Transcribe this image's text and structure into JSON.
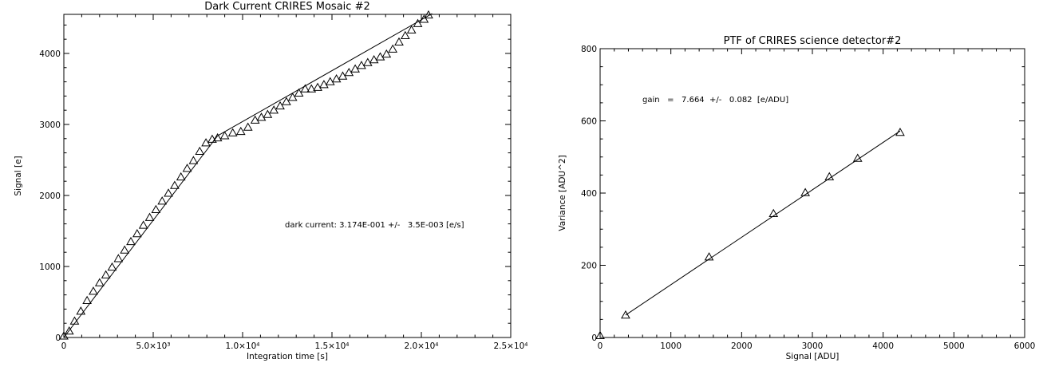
{
  "chart_data": [
    {
      "type": "scatter",
      "title": "Dark Current CRIRES Mosaic #2",
      "xlabel": "Integration time [s]",
      "ylabel": "Signal [e]",
      "xlim": [
        0,
        25000
      ],
      "ylim": [
        0,
        4550
      ],
      "xticks": [
        0,
        5000,
        10000,
        15000,
        20000,
        25000
      ],
      "xtick_labels": [
        "0",
        "5.0×10³",
        "1.0×10⁴",
        "1.5×10⁴",
        "2.0×10⁴",
        "2.5×10⁴"
      ],
      "yticks": [
        0,
        1000,
        2000,
        3000,
        4000
      ],
      "ytick_labels": [
        "0",
        "1000",
        "2000",
        "3000",
        "4000"
      ],
      "grid": false,
      "marker": "open triangle",
      "annotation": "dark current: 3.174E-001 +/-   3.5E-003 [e/s]",
      "x": [
        0,
        300,
        600,
        950,
        1300,
        1650,
        2000,
        2350,
        2700,
        3050,
        3400,
        3750,
        4100,
        4450,
        4800,
        5150,
        5500,
        5850,
        6200,
        6550,
        6900,
        7250,
        7600,
        7950,
        8300,
        8600,
        9000,
        9450,
        9900,
        10300,
        10700,
        11050,
        11400,
        11750,
        12100,
        12450,
        12800,
        13150,
        13500,
        13850,
        14200,
        14550,
        14900,
        15250,
        15600,
        15950,
        16300,
        16650,
        17000,
        17350,
        17700,
        18050,
        18400,
        18750,
        19100,
        19450,
        19800,
        20150,
        20400
      ],
      "y": [
        20,
        90,
        230,
        370,
        520,
        650,
        770,
        880,
        990,
        1110,
        1230,
        1350,
        1460,
        1580,
        1690,
        1800,
        1920,
        2030,
        2140,
        2260,
        2380,
        2490,
        2620,
        2740,
        2790,
        2810,
        2840,
        2880,
        2900,
        2960,
        3060,
        3100,
        3140,
        3200,
        3260,
        3320,
        3380,
        3440,
        3500,
        3500,
        3520,
        3560,
        3600,
        3640,
        3680,
        3730,
        3780,
        3830,
        3870,
        3910,
        3950,
        3990,
        4060,
        4160,
        4250,
        4330,
        4420,
        4480,
        4540
      ],
      "fit_lines": [
        {
          "x": [
            0,
            8600
          ],
          "y": [
            0,
            2840
          ]
        },
        {
          "x": [
            8600,
            20600
          ],
          "y": [
            2840,
            4560
          ]
        }
      ]
    },
    {
      "type": "scatter",
      "title": "PTF of CRIRES science detector#2",
      "xlabel": "Signal [ADU]",
      "ylabel": "Variance [ADU^2]",
      "xlim": [
        0,
        6000
      ],
      "ylim": [
        0,
        800
      ],
      "xticks": [
        0,
        1000,
        2000,
        3000,
        4000,
        5000,
        6000
      ],
      "xtick_labels": [
        "0",
        "1000",
        "2000",
        "3000",
        "4000",
        "5000",
        "6000"
      ],
      "yticks": [
        0,
        200,
        400,
        600,
        800
      ],
      "ytick_labels": [
        "0",
        "200",
        "400",
        "600",
        "800"
      ],
      "grid": false,
      "marker": "open triangle",
      "annotation": "gain   =   7.664  +/-   0.082  [e/ADU]",
      "x": [
        0,
        360,
        1540,
        2450,
        2900,
        3240,
        3640,
        4240
      ],
      "y": [
        5,
        62,
        223,
        343,
        401,
        445,
        496,
        568
      ],
      "fit_lines": [
        {
          "x": [
            360,
            4240
          ],
          "y": [
            62,
            572
          ]
        }
      ]
    }
  ]
}
